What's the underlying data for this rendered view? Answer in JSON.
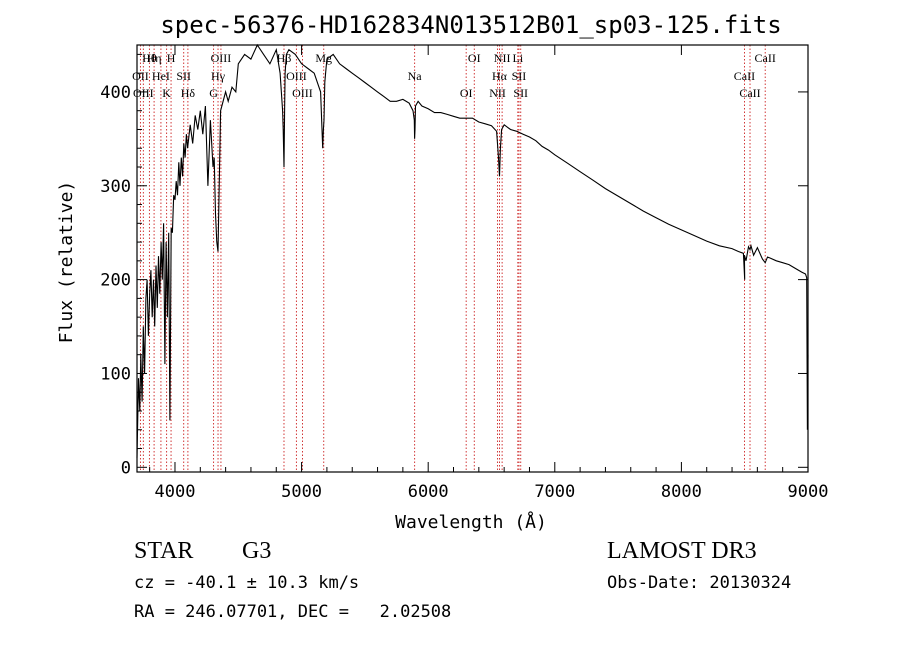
{
  "chart_data": {
    "type": "line",
    "title": "spec-56376-HD162834N013512B01_sp03-125.fits",
    "xlabel": "Wavelength (Å)",
    "ylabel": "Flux (relative)",
    "xlim": [
      3700,
      9000
    ],
    "ylim": [
      -5,
      450
    ],
    "xticks": [
      4000,
      5000,
      6000,
      7000,
      8000,
      9000
    ],
    "yticks": [
      0,
      100,
      200,
      300,
      400
    ],
    "grid": false,
    "series": [
      {
        "color": "#000000",
        "x": [
          3700,
          3712,
          3722,
          3730,
          3740,
          3750,
          3760,
          3770,
          3780,
          3790,
          3800,
          3810,
          3820,
          3830,
          3840,
          3850,
          3860,
          3870,
          3880,
          3890,
          3900,
          3910,
          3920,
          3930,
          3940,
          3950,
          3960,
          3970,
          3980,
          3990,
          4000,
          4010,
          4020,
          4030,
          4040,
          4050,
          4060,
          4070,
          4080,
          4090,
          4100,
          4120,
          4140,
          4160,
          4180,
          4200,
          4220,
          4240,
          4260,
          4280,
          4300,
          4310,
          4320,
          4330,
          4340,
          4360,
          4380,
          4400,
          4420,
          4450,
          4480,
          4500,
          4550,
          4600,
          4650,
          4700,
          4750,
          4800,
          4830,
          4850,
          4855,
          4861,
          4866,
          4870,
          4880,
          4900,
          4950,
          5000,
          5050,
          5100,
          5150,
          5167,
          5172,
          5177,
          5183,
          5190,
          5200,
          5250,
          5300,
          5350,
          5400,
          5450,
          5500,
          5550,
          5600,
          5650,
          5700,
          5750,
          5800,
          5850,
          5880,
          5890,
          5893,
          5896,
          5900,
          5920,
          5950,
          6000,
          6050,
          6100,
          6150,
          6200,
          6250,
          6300,
          6350,
          6400,
          6450,
          6500,
          6540,
          6555,
          6563,
          6570,
          6580,
          6600,
          6650,
          6700,
          6750,
          6800,
          6850,
          6900,
          6950,
          7000,
          7100,
          7200,
          7300,
          7400,
          7500,
          7600,
          7700,
          7800,
          7900,
          8000,
          8100,
          8200,
          8300,
          8400,
          8450,
          8490,
          8500,
          8498,
          8510,
          8530,
          8542,
          8550,
          8570,
          8600,
          8640,
          8662,
          8680,
          8700,
          8750,
          8800,
          8850,
          8900,
          8950,
          8980,
          8990,
          8995,
          9000
        ],
        "y": [
          10,
          95,
          60,
          120,
          70,
          150,
          100,
          180,
          200,
          140,
          185,
          210,
          160,
          200,
          150,
          215,
          170,
          225,
          185,
          240,
          200,
          260,
          110,
          240,
          160,
          250,
          50,
          255,
          250,
          290,
          285,
          305,
          290,
          325,
          300,
          330,
          310,
          345,
          330,
          355,
          340,
          365,
          345,
          375,
          360,
          380,
          355,
          385,
          300,
          370,
          320,
          330,
          270,
          240,
          230,
          380,
          390,
          400,
          390,
          405,
          400,
          430,
          440,
          435,
          450,
          440,
          430,
          445,
          420,
          380,
          360,
          320,
          380,
          420,
          440,
          445,
          440,
          430,
          425,
          420,
          400,
          340,
          360,
          370,
          410,
          420,
          435,
          440,
          430,
          425,
          420,
          415,
          410,
          405,
          400,
          395,
          390,
          390,
          392,
          388,
          380,
          370,
          350,
          360,
          385,
          390,
          385,
          382,
          378,
          378,
          376,
          374,
          372,
          372,
          372,
          368,
          366,
          364,
          358,
          330,
          310,
          340,
          360,
          365,
          360,
          358,
          355,
          352,
          348,
          342,
          338,
          333,
          324,
          315,
          306,
          297,
          289,
          281,
          273,
          266,
          259,
          253,
          247,
          241,
          236,
          233,
          230,
          228,
          200,
          226,
          220,
          235,
          232,
          236,
          226,
          234,
          222,
          218,
          224,
          223,
          220,
          218,
          216,
          212,
          208,
          206,
          202,
          40,
          120
        ]
      }
    ],
    "line_markers": [
      {
        "label": "Hθ",
        "x": 3798
      },
      {
        "label": "OII",
        "x": 3727
      },
      {
        "label": "OIII",
        "x": 3750
      },
      {
        "label": "Hη",
        "x": 3835
      },
      {
        "label": "HeI",
        "x": 3889
      },
      {
        "label": "K",
        "x": 3934
      },
      {
        "label": "H",
        "x": 3969
      },
      {
        "label": "SII",
        "x": 4069
      },
      {
        "label": "Hδ",
        "x": 4102
      },
      {
        "label": "OIII",
        "x": 4363
      },
      {
        "label": "Hγ",
        "x": 4340
      },
      {
        "label": "G",
        "x": 4305
      },
      {
        "label": "Hβ",
        "x": 4861
      },
      {
        "label": "OIII",
        "x": 4959
      },
      {
        "label": "OIII",
        "x": 5007
      },
      {
        "label": "Mg",
        "x": 5175
      },
      {
        "label": "Na",
        "x": 5893
      },
      {
        "label": "OI",
        "x": 6300
      },
      {
        "label": "OI",
        "x": 6364
      },
      {
        "label": "Hα",
        "x": 6563
      },
      {
        "label": "NII",
        "x": 6548
      },
      {
        "label": "NII",
        "x": 6584
      },
      {
        "label": "SII",
        "x": 6717
      },
      {
        "label": "SII",
        "x": 6731
      },
      {
        "label": "Li",
        "x": 6708
      },
      {
        "label": "CaII",
        "x": 8498
      },
      {
        "label": "CaII",
        "x": 8542
      },
      {
        "label": "CaII",
        "x": 8662
      }
    ],
    "marker_color": "#cc2222"
  },
  "info": {
    "object_class": "STAR",
    "subclass": "G3",
    "survey": "LAMOST DR3",
    "cz": "cz = -40.1 ± 10.3 km/s",
    "obs_date": "Obs-Date: 20130324",
    "coords": "RA = 246.07701, DEC =   2.02508"
  }
}
